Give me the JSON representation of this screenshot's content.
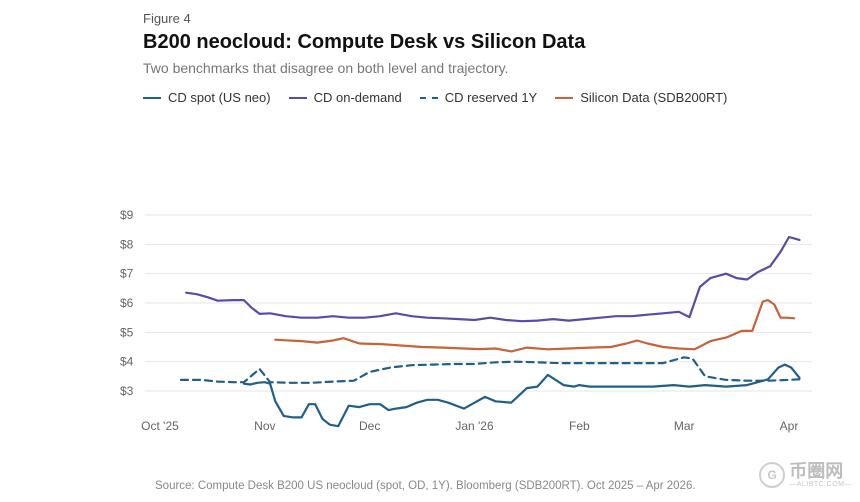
{
  "figure_label": "Figure 4",
  "title": "B200 neocloud: Compute Desk vs Silicon Data",
  "subtitle": "Two benchmarks that disagree on both level and trajectory.",
  "source": "Source: Compute Desk B200 US neocloud (spot, OD, 1Y). Bloomberg (SDB200RT). Oct 2025 – Apr 2026.",
  "watermark": {
    "main": "币圈网",
    "sub": "—ALIBTC.COM—",
    "icon_glyph": "G"
  },
  "chart_data": {
    "type": "line",
    "title": "B200 neocloud: Compute Desk vs Silicon Data",
    "xlabel": "",
    "ylabel": "",
    "ylim": [
      2.5,
      9.3
    ],
    "xlim": [
      0,
      6
    ],
    "grid": true,
    "legend_position": "top-left",
    "x_ticks": [
      {
        "label": "Oct '25",
        "x": 0
      },
      {
        "label": "Nov",
        "x": 1
      },
      {
        "label": "Dec",
        "x": 2
      },
      {
        "label": "Jan '26",
        "x": 3
      },
      {
        "label": "Feb",
        "x": 4
      },
      {
        "label": "Mar",
        "x": 5
      },
      {
        "label": "Apr",
        "x": 6
      }
    ],
    "y_ticks": [
      {
        "label": "$3",
        "value": 3
      },
      {
        "label": "$4",
        "value": 4
      },
      {
        "label": "$5",
        "value": 5
      },
      {
        "label": "$6",
        "value": 6
      },
      {
        "label": "$7",
        "value": 7
      },
      {
        "label": "$8",
        "value": 8
      },
      {
        "label": "$9",
        "value": 9
      }
    ],
    "series": [
      {
        "name": "CD spot (US neo)",
        "color": "#1f5f8b",
        "dash": "solid",
        "x": [
          0.8,
          0.86,
          0.93,
          1.0,
          1.05,
          1.1,
          1.18,
          1.27,
          1.35,
          1.42,
          1.48,
          1.55,
          1.62,
          1.7,
          1.8,
          1.9,
          2.0,
          2.1,
          2.18,
          2.25,
          2.35,
          2.45,
          2.55,
          2.65,
          2.75,
          2.9,
          3.0,
          3.1,
          3.2,
          3.35,
          3.5,
          3.6,
          3.7,
          3.85,
          3.95,
          4.0,
          4.1,
          4.2,
          4.35,
          4.5,
          4.7,
          4.9,
          5.05,
          5.2,
          5.4,
          5.6,
          5.8,
          5.9,
          5.96,
          6.02,
          6.1
        ],
        "y": [
          3.25,
          3.22,
          3.28,
          3.3,
          3.25,
          2.65,
          2.15,
          2.1,
          2.1,
          2.55,
          2.55,
          2.05,
          1.85,
          1.8,
          2.5,
          2.45,
          2.55,
          2.55,
          2.35,
          2.4,
          2.45,
          2.6,
          2.7,
          2.7,
          2.6,
          2.4,
          2.6,
          2.8,
          2.65,
          2.6,
          3.1,
          3.15,
          3.55,
          3.2,
          3.15,
          3.2,
          3.15,
          3.15,
          3.15,
          3.15,
          3.15,
          3.2,
          3.15,
          3.2,
          3.15,
          3.2,
          3.4,
          3.8,
          3.9,
          3.8,
          3.45
        ]
      },
      {
        "name": "CD on-demand",
        "color": "#5d4aa8",
        "dash": "solid",
        "x": [
          0.25,
          0.35,
          0.45,
          0.55,
          0.7,
          0.8,
          0.87,
          0.95,
          1.05,
          1.2,
          1.35,
          1.5,
          1.65,
          1.8,
          1.95,
          2.1,
          2.25,
          2.4,
          2.55,
          2.7,
          2.85,
          3.0,
          3.15,
          3.3,
          3.45,
          3.6,
          3.75,
          3.9,
          4.05,
          4.2,
          4.35,
          4.5,
          4.65,
          4.8,
          4.95,
          5.05,
          5.15,
          5.25,
          5.4,
          5.5,
          5.6,
          5.7,
          5.82,
          5.92,
          6.0,
          6.1
        ],
        "y": [
          6.35,
          6.3,
          6.2,
          6.08,
          6.1,
          6.1,
          5.85,
          5.63,
          5.65,
          5.55,
          5.5,
          5.5,
          5.55,
          5.5,
          5.5,
          5.55,
          5.65,
          5.55,
          5.5,
          5.48,
          5.45,
          5.42,
          5.5,
          5.42,
          5.38,
          5.4,
          5.45,
          5.4,
          5.45,
          5.5,
          5.55,
          5.55,
          5.6,
          5.65,
          5.7,
          5.52,
          6.55,
          6.85,
          7.0,
          6.85,
          6.8,
          7.05,
          7.25,
          7.75,
          8.25,
          8.15
        ]
      },
      {
        "name": "CD reserved 1Y",
        "color": "#1f5f8b",
        "dash": "dashed",
        "x": [
          0.2,
          0.4,
          0.55,
          0.7,
          0.8,
          0.9,
          0.95,
          1.05,
          1.25,
          1.45,
          1.65,
          1.85,
          2.0,
          2.2,
          2.4,
          2.6,
          2.8,
          3.0,
          3.2,
          3.4,
          3.6,
          3.8,
          4.0,
          4.2,
          4.4,
          4.6,
          4.8,
          5.0,
          5.08,
          5.2,
          5.4,
          5.6,
          5.8,
          6.0,
          6.1
        ],
        "y": [
          3.38,
          3.38,
          3.32,
          3.3,
          3.3,
          3.6,
          3.75,
          3.3,
          3.28,
          3.28,
          3.32,
          3.35,
          3.65,
          3.8,
          3.88,
          3.9,
          3.92,
          3.92,
          3.98,
          4.0,
          3.98,
          3.95,
          3.95,
          3.95,
          3.95,
          3.95,
          3.95,
          4.15,
          4.1,
          3.5,
          3.38,
          3.35,
          3.35,
          3.38,
          3.4
        ]
      },
      {
        "name": "Silicon Data (SDB200RT)",
        "color": "#c8623a",
        "dash": "solid",
        "x": [
          1.1,
          1.2,
          1.35,
          1.5,
          1.65,
          1.75,
          1.9,
          2.1,
          2.3,
          2.5,
          2.7,
          2.9,
          3.05,
          3.2,
          3.35,
          3.5,
          3.7,
          3.9,
          4.1,
          4.3,
          4.45,
          4.55,
          4.65,
          4.8,
          4.95,
          5.1,
          5.25,
          5.4,
          5.55,
          5.65,
          5.75,
          5.8,
          5.86,
          5.92,
          5.98,
          6.05
        ],
        "y": [
          4.75,
          4.73,
          4.7,
          4.65,
          4.72,
          4.8,
          4.62,
          4.6,
          4.55,
          4.5,
          4.48,
          4.45,
          4.43,
          4.45,
          4.35,
          4.48,
          4.42,
          4.45,
          4.48,
          4.5,
          4.62,
          4.72,
          4.62,
          4.5,
          4.45,
          4.42,
          4.7,
          4.82,
          5.05,
          5.05,
          6.05,
          6.1,
          5.95,
          5.5,
          5.5,
          5.48
        ]
      }
    ]
  }
}
